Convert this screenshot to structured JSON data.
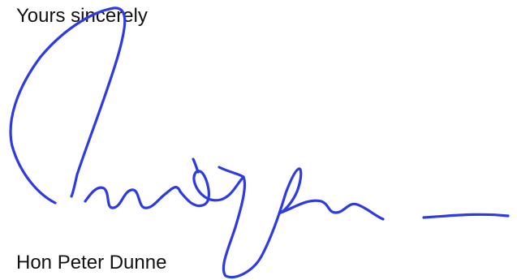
{
  "letter": {
    "closing": "Yours sincerely",
    "signatory_name": "Hon Peter Dunne"
  },
  "signature": {
    "icon": "handwritten-signature",
    "ink_color": "#2d3be0"
  }
}
